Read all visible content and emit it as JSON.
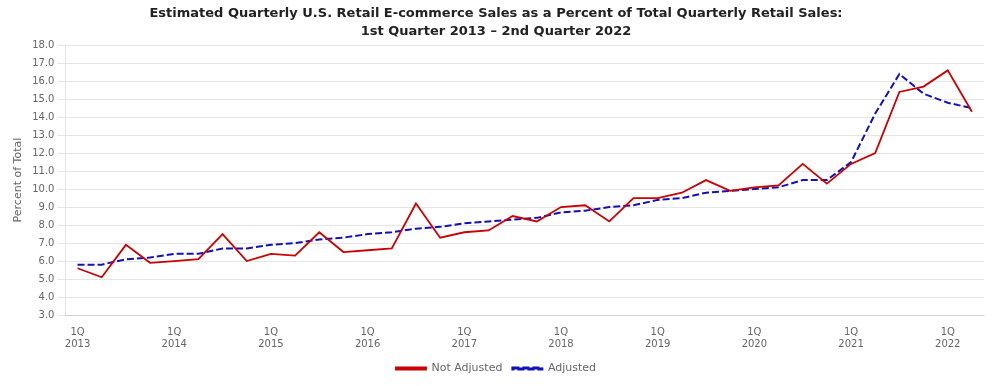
{
  "chart_data": {
    "type": "line",
    "title": "Estimated Quarterly U.S. Retail E-commerce Sales as a Percent of Total Quarterly Retail Sales:",
    "subtitle": "1st Quarter 2013 – 2nd Quarter 2022",
    "y_label": "Percent of Total",
    "categories": [
      "1Q\n2013",
      null,
      null,
      null,
      "1Q\n2014",
      null,
      null,
      null,
      "1Q\n2015",
      null,
      null,
      null,
      "1Q\n2016",
      null,
      null,
      null,
      "1Q\n2017",
      null,
      null,
      null,
      "1Q\n2018",
      null,
      null,
      null,
      "1Q\n2019",
      null,
      null,
      null,
      "1Q\n2020",
      null,
      null,
      null,
      "1Q\n2021",
      null,
      null,
      null,
      "1Q\n2022",
      null
    ],
    "series": [
      {
        "name": "Not Adjusted",
        "color": "#cc0000",
        "line_style": "solid",
        "values": [
          5.6,
          5.1,
          6.9,
          5.9,
          6.0,
          6.1,
          7.5,
          6.0,
          6.4,
          6.3,
          7.6,
          6.5,
          6.6,
          6.7,
          9.2,
          7.3,
          7.6,
          7.7,
          8.5,
          8.2,
          9.0,
          9.1,
          8.2,
          9.5,
          9.5,
          9.8,
          10.5,
          9.9,
          10.1,
          10.2,
          11.4,
          10.3,
          11.4,
          12.0,
          15.4,
          15.7,
          16.6,
          14.3
        ]
      },
      {
        "name": "Adjusted",
        "color": "#1111bb",
        "line_style": "dashed",
        "values": [
          5.8,
          5.8,
          6.1,
          6.2,
          6.4,
          6.4,
          6.7,
          6.7,
          6.9,
          7.0,
          7.2,
          7.3,
          7.5,
          7.6,
          7.8,
          7.9,
          8.1,
          8.2,
          8.3,
          8.4,
          8.7,
          8.8,
          9.0,
          9.1,
          9.4,
          9.5,
          9.8,
          9.9,
          10.0,
          10.1,
          10.5,
          10.5,
          11.5,
          14.2,
          16.4,
          15.3,
          14.8,
          14.5
        ]
      }
    ],
    "ylim": [
      3.0,
      18.0
    ],
    "yticks": [
      {
        "value": 3,
        "label": "3.0"
      },
      {
        "value": 4,
        "label": "4.0"
      },
      {
        "value": 5,
        "label": "5.0"
      },
      {
        "value": 6,
        "label": "6.0"
      },
      {
        "value": 7,
        "label": "7.0"
      },
      {
        "value": 8,
        "label": "8.0"
      },
      {
        "value": 9,
        "label": "9.0"
      },
      {
        "value": 10,
        "label": "10.0"
      },
      {
        "value": 11,
        "label": "11.0"
      },
      {
        "value": 12,
        "label": "12.0"
      },
      {
        "value": 13,
        "label": "13.0"
      },
      {
        "value": 14,
        "label": "14.0"
      },
      {
        "value": 15,
        "label": "15.0"
      },
      {
        "value": 16,
        "label": "16.0"
      },
      {
        "value": 17,
        "label": "17.0"
      },
      {
        "value": 18,
        "label": "18.0"
      }
    ],
    "grid": "y",
    "legend": "bottom"
  }
}
